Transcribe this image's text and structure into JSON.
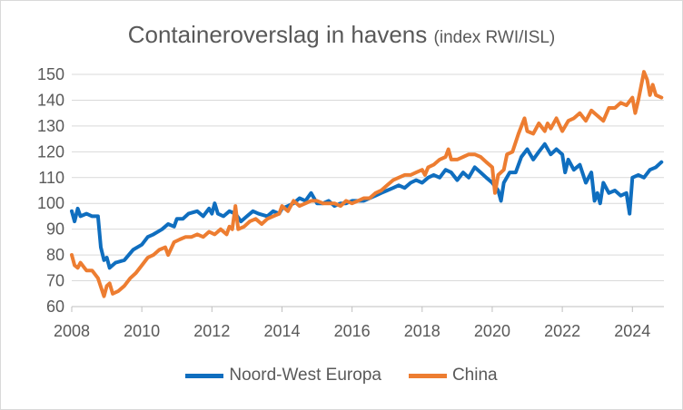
{
  "chart_data": {
    "type": "line",
    "title": "Containeroverslag in havens",
    "subtitle": "(index RWI/ISL)",
    "xlabel": "",
    "ylabel": "",
    "xlim": [
      2008,
      2024.9
    ],
    "ylim": [
      60,
      150
    ],
    "yticks": [
      60,
      70,
      80,
      90,
      100,
      110,
      120,
      130,
      140,
      150
    ],
    "xticks": [
      2008,
      2010,
      2012,
      2014,
      2016,
      2018,
      2020,
      2022,
      2024
    ],
    "grid": "horizontal",
    "legend_position": "bottom",
    "series": [
      {
        "name": "Noord-West Europa",
        "color": "#0F6EBF",
        "points": [
          [
            2008.0,
            97
          ],
          [
            2008.08,
            93
          ],
          [
            2008.17,
            98
          ],
          [
            2008.25,
            95
          ],
          [
            2008.42,
            96
          ],
          [
            2008.58,
            95
          ],
          [
            2008.75,
            95
          ],
          [
            2008.83,
            83
          ],
          [
            2008.92,
            78
          ],
          [
            2009.0,
            79
          ],
          [
            2009.08,
            75
          ],
          [
            2009.25,
            77
          ],
          [
            2009.5,
            78
          ],
          [
            2009.75,
            82
          ],
          [
            2010.0,
            84
          ],
          [
            2010.17,
            87
          ],
          [
            2010.33,
            88
          ],
          [
            2010.58,
            90
          ],
          [
            2010.75,
            92
          ],
          [
            2010.92,
            91
          ],
          [
            2011.0,
            94
          ],
          [
            2011.17,
            94
          ],
          [
            2011.33,
            96
          ],
          [
            2011.58,
            97
          ],
          [
            2011.75,
            95
          ],
          [
            2011.92,
            98
          ],
          [
            2012.0,
            96
          ],
          [
            2012.08,
            100
          ],
          [
            2012.17,
            96
          ],
          [
            2012.33,
            95
          ],
          [
            2012.5,
            97
          ],
          [
            2012.67,
            96
          ],
          [
            2012.83,
            93
          ],
          [
            2013.0,
            95
          ],
          [
            2013.17,
            97
          ],
          [
            2013.33,
            96
          ],
          [
            2013.58,
            95
          ],
          [
            2013.75,
            97
          ],
          [
            2013.92,
            96
          ],
          [
            2014.0,
            98
          ],
          [
            2014.17,
            99
          ],
          [
            2014.33,
            100
          ],
          [
            2014.5,
            102
          ],
          [
            2014.67,
            101
          ],
          [
            2014.83,
            104
          ],
          [
            2015.0,
            100
          ],
          [
            2015.17,
            100
          ],
          [
            2015.33,
            101
          ],
          [
            2015.5,
            99
          ],
          [
            2015.67,
            100
          ],
          [
            2015.83,
            100
          ],
          [
            2016.0,
            101
          ],
          [
            2016.17,
            101
          ],
          [
            2016.33,
            101
          ],
          [
            2016.5,
            102
          ],
          [
            2016.67,
            103
          ],
          [
            2016.83,
            104
          ],
          [
            2017.0,
            105
          ],
          [
            2017.17,
            106
          ],
          [
            2017.33,
            107
          ],
          [
            2017.5,
            106
          ],
          [
            2017.67,
            108
          ],
          [
            2017.83,
            109
          ],
          [
            2018.0,
            108
          ],
          [
            2018.17,
            110
          ],
          [
            2018.33,
            111
          ],
          [
            2018.5,
            110
          ],
          [
            2018.67,
            113
          ],
          [
            2018.83,
            112
          ],
          [
            2019.0,
            109
          ],
          [
            2019.17,
            112
          ],
          [
            2019.33,
            110
          ],
          [
            2019.5,
            114
          ],
          [
            2019.67,
            112
          ],
          [
            2019.83,
            110
          ],
          [
            2020.0,
            108
          ],
          [
            2020.17,
            105
          ],
          [
            2020.25,
            101
          ],
          [
            2020.33,
            108
          ],
          [
            2020.5,
            112
          ],
          [
            2020.67,
            112
          ],
          [
            2020.83,
            118
          ],
          [
            2021.0,
            121
          ],
          [
            2021.17,
            117
          ],
          [
            2021.33,
            120
          ],
          [
            2021.5,
            123
          ],
          [
            2021.67,
            119
          ],
          [
            2021.83,
            121
          ],
          [
            2022.0,
            119
          ],
          [
            2022.08,
            112
          ],
          [
            2022.17,
            117
          ],
          [
            2022.33,
            113
          ],
          [
            2022.5,
            115
          ],
          [
            2022.67,
            108
          ],
          [
            2022.83,
            112
          ],
          [
            2022.92,
            101
          ],
          [
            2023.0,
            104
          ],
          [
            2023.08,
            100
          ],
          [
            2023.17,
            108
          ],
          [
            2023.33,
            104
          ],
          [
            2023.5,
            105
          ],
          [
            2023.67,
            103
          ],
          [
            2023.83,
            104
          ],
          [
            2023.92,
            96
          ],
          [
            2024.0,
            110
          ],
          [
            2024.17,
            111
          ],
          [
            2024.33,
            110
          ],
          [
            2024.5,
            113
          ],
          [
            2024.67,
            114
          ],
          [
            2024.83,
            116
          ]
        ]
      },
      {
        "name": "China",
        "color": "#ED7D31",
        "points": [
          [
            2008.0,
            80
          ],
          [
            2008.08,
            76
          ],
          [
            2008.17,
            75
          ],
          [
            2008.25,
            77
          ],
          [
            2008.42,
            74
          ],
          [
            2008.58,
            74
          ],
          [
            2008.75,
            71
          ],
          [
            2008.92,
            64
          ],
          [
            2009.0,
            68
          ],
          [
            2009.08,
            69
          ],
          [
            2009.17,
            65
          ],
          [
            2009.33,
            66
          ],
          [
            2009.5,
            68
          ],
          [
            2009.67,
            71
          ],
          [
            2009.83,
            73
          ],
          [
            2010.0,
            76
          ],
          [
            2010.17,
            79
          ],
          [
            2010.33,
            80
          ],
          [
            2010.5,
            82
          ],
          [
            2010.67,
            83
          ],
          [
            2010.75,
            80
          ],
          [
            2010.92,
            85
          ],
          [
            2011.08,
            86
          ],
          [
            2011.25,
            87
          ],
          [
            2011.42,
            87
          ],
          [
            2011.58,
            88
          ],
          [
            2011.75,
            87
          ],
          [
            2011.92,
            89
          ],
          [
            2012.08,
            88
          ],
          [
            2012.25,
            90
          ],
          [
            2012.42,
            88
          ],
          [
            2012.5,
            91
          ],
          [
            2012.58,
            90
          ],
          [
            2012.67,
            99
          ],
          [
            2012.75,
            90
          ],
          [
            2012.92,
            91
          ],
          [
            2013.08,
            93
          ],
          [
            2013.25,
            94
          ],
          [
            2013.42,
            92
          ],
          [
            2013.58,
            94
          ],
          [
            2013.75,
            95
          ],
          [
            2013.92,
            96
          ],
          [
            2014.0,
            99
          ],
          [
            2014.17,
            97
          ],
          [
            2014.33,
            101
          ],
          [
            2014.5,
            99
          ],
          [
            2014.67,
            100
          ],
          [
            2014.83,
            101
          ],
          [
            2015.0,
            101
          ],
          [
            2015.17,
            100
          ],
          [
            2015.33,
            100
          ],
          [
            2015.5,
            100
          ],
          [
            2015.67,
            99
          ],
          [
            2015.83,
            101
          ],
          [
            2016.0,
            100
          ],
          [
            2016.17,
            101
          ],
          [
            2016.33,
            102
          ],
          [
            2016.5,
            102
          ],
          [
            2016.67,
            104
          ],
          [
            2016.83,
            105
          ],
          [
            2017.0,
            107
          ],
          [
            2017.17,
            109
          ],
          [
            2017.33,
            110
          ],
          [
            2017.5,
            111
          ],
          [
            2017.67,
            111
          ],
          [
            2017.83,
            112
          ],
          [
            2018.0,
            113
          ],
          [
            2018.08,
            111
          ],
          [
            2018.17,
            114
          ],
          [
            2018.33,
            115
          ],
          [
            2018.5,
            117
          ],
          [
            2018.67,
            118
          ],
          [
            2018.75,
            121
          ],
          [
            2018.83,
            117
          ],
          [
            2019.0,
            117
          ],
          [
            2019.17,
            118
          ],
          [
            2019.33,
            119
          ],
          [
            2019.5,
            119
          ],
          [
            2019.67,
            118
          ],
          [
            2019.83,
            116
          ],
          [
            2020.0,
            114
          ],
          [
            2020.08,
            104
          ],
          [
            2020.17,
            111
          ],
          [
            2020.33,
            113
          ],
          [
            2020.42,
            119
          ],
          [
            2020.58,
            120
          ],
          [
            2020.75,
            127
          ],
          [
            2020.92,
            133
          ],
          [
            2021.0,
            128
          ],
          [
            2021.17,
            127
          ],
          [
            2021.33,
            131
          ],
          [
            2021.5,
            128
          ],
          [
            2021.58,
            131
          ],
          [
            2021.67,
            129
          ],
          [
            2021.83,
            133
          ],
          [
            2022.0,
            128
          ],
          [
            2022.17,
            132
          ],
          [
            2022.33,
            133
          ],
          [
            2022.5,
            135
          ],
          [
            2022.67,
            132
          ],
          [
            2022.83,
            136
          ],
          [
            2023.0,
            134
          ],
          [
            2023.17,
            132
          ],
          [
            2023.33,
            137
          ],
          [
            2023.5,
            137
          ],
          [
            2023.67,
            139
          ],
          [
            2023.83,
            138
          ],
          [
            2024.0,
            141
          ],
          [
            2024.08,
            135
          ],
          [
            2024.17,
            140
          ],
          [
            2024.33,
            152
          ],
          [
            2024.42,
            148
          ],
          [
            2024.5,
            142
          ],
          [
            2024.58,
            146
          ],
          [
            2024.67,
            142
          ],
          [
            2024.83,
            141
          ]
        ]
      }
    ]
  }
}
